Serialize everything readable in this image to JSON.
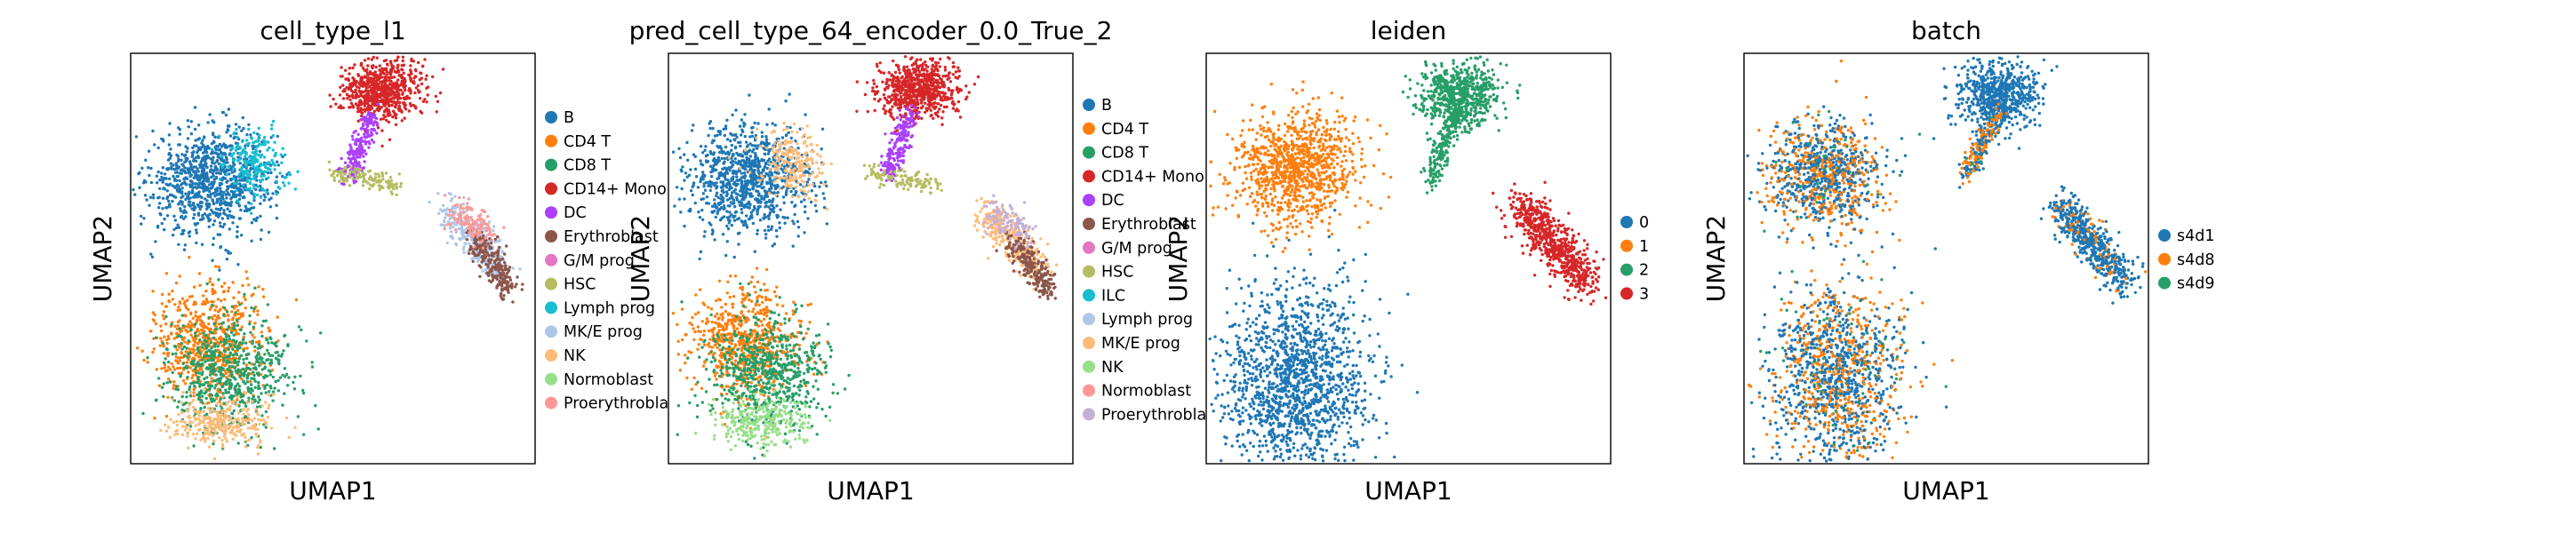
{
  "chart_data": [
    {
      "type": "scatter",
      "title": "cell_type_l1",
      "xlabel": "UMAP1",
      "ylabel": "UMAP2",
      "grid": false,
      "legend_position": "right",
      "legend": [
        {
          "name": "B",
          "color": "#1f77b4"
        },
        {
          "name": "CD4 T",
          "color": "#ff7f0e"
        },
        {
          "name": "CD8 T",
          "color": "#279e68"
        },
        {
          "name": "CD14+ Mono",
          "color": "#d62728"
        },
        {
          "name": "DC",
          "color": "#aa40fc"
        },
        {
          "name": "Erythroblast",
          "color": "#8c564b"
        },
        {
          "name": "G/M prog",
          "color": "#e377c2"
        },
        {
          "name": "HSC",
          "color": "#b5bd61"
        },
        {
          "name": "Lymph prog",
          "color": "#17becf"
        },
        {
          "name": "MK/E prog",
          "color": "#aec7e8"
        },
        {
          "name": "NK",
          "color": "#ffbb78"
        },
        {
          "name": "Normoblast",
          "color": "#98df8a"
        },
        {
          "name": "Proerythroblast",
          "color": "#ff9896"
        }
      ],
      "clusters": [
        {
          "label": "B",
          "x": 0.22,
          "y": 0.7,
          "color": "#1f77b4"
        },
        {
          "label": "CD4 T",
          "x": 0.2,
          "y": 0.28,
          "color": "#ff7f0e"
        },
        {
          "label": "CD8 T",
          "x": 0.24,
          "y": 0.22,
          "color": "#279e68"
        },
        {
          "label": "CD14+ Mono",
          "x": 0.62,
          "y": 0.9,
          "color": "#d62728"
        },
        {
          "label": "NK",
          "x": 0.22,
          "y": 0.1,
          "color": "#ffbb78"
        }
      ]
    },
    {
      "type": "scatter",
      "title": "pred_cell_type_64_encoder_0.0_True_2",
      "xlabel": "UMAP1",
      "ylabel": "UMAP2",
      "grid": false,
      "legend_position": "right",
      "legend": [
        {
          "name": "B",
          "color": "#1f77b4"
        },
        {
          "name": "CD4 T",
          "color": "#ff7f0e"
        },
        {
          "name": "CD8 T",
          "color": "#279e68"
        },
        {
          "name": "CD14+ Mono",
          "color": "#d62728"
        },
        {
          "name": "DC",
          "color": "#aa40fc"
        },
        {
          "name": "Erythroblast",
          "color": "#8c564b"
        },
        {
          "name": "G/M prog",
          "color": "#e377c2"
        },
        {
          "name": "HSC",
          "color": "#b5bd61"
        },
        {
          "name": "ILC",
          "color": "#17becf"
        },
        {
          "name": "Lymph prog",
          "color": "#aec7e8"
        },
        {
          "name": "MK/E prog",
          "color": "#ffbb78"
        },
        {
          "name": "NK",
          "color": "#98df8a"
        },
        {
          "name": "Normoblast",
          "color": "#ff9896"
        },
        {
          "name": "Proerythroblast",
          "color": "#c5b0d5"
        }
      ],
      "clusters": [
        {
          "label": "B",
          "x": 0.22,
          "y": 0.7,
          "color": "#1f77b4"
        },
        {
          "label": "CD4 T",
          "x": 0.2,
          "y": 0.28,
          "color": "#ff7f0e"
        },
        {
          "label": "CD8 T",
          "x": 0.24,
          "y": 0.22,
          "color": "#279e68"
        },
        {
          "label": "CD14+ Mono",
          "x": 0.62,
          "y": 0.9,
          "color": "#d62728"
        },
        {
          "label": "NK",
          "x": 0.22,
          "y": 0.1,
          "color": "#98df8a"
        }
      ]
    },
    {
      "type": "scatter",
      "title": "leiden",
      "xlabel": "UMAP1",
      "ylabel": "UMAP2",
      "grid": false,
      "legend_position": "right",
      "legend": [
        {
          "name": "0",
          "color": "#1f77b4"
        },
        {
          "name": "1",
          "color": "#ff7f0e"
        },
        {
          "name": "2",
          "color": "#279e68"
        },
        {
          "name": "3",
          "color": "#d62728"
        }
      ],
      "clusters": [
        {
          "label": "0",
          "x": 0.22,
          "y": 0.22,
          "color": "#1f77b4"
        },
        {
          "label": "1",
          "x": 0.22,
          "y": 0.72,
          "color": "#ff7f0e"
        },
        {
          "label": "2",
          "x": 0.62,
          "y": 0.88,
          "color": "#279e68"
        },
        {
          "label": "3",
          "x": 0.85,
          "y": 0.45,
          "color": "#d62728"
        }
      ]
    },
    {
      "type": "scatter",
      "title": "batch",
      "xlabel": "UMAP1",
      "ylabel": "UMAP2",
      "grid": false,
      "legend_position": "right",
      "legend": [
        {
          "name": "s4d1",
          "color": "#1f77b4"
        },
        {
          "name": "s4d8",
          "color": "#ff7f0e"
        },
        {
          "name": "s4d9",
          "color": "#279e68"
        }
      ],
      "clusters": []
    }
  ]
}
